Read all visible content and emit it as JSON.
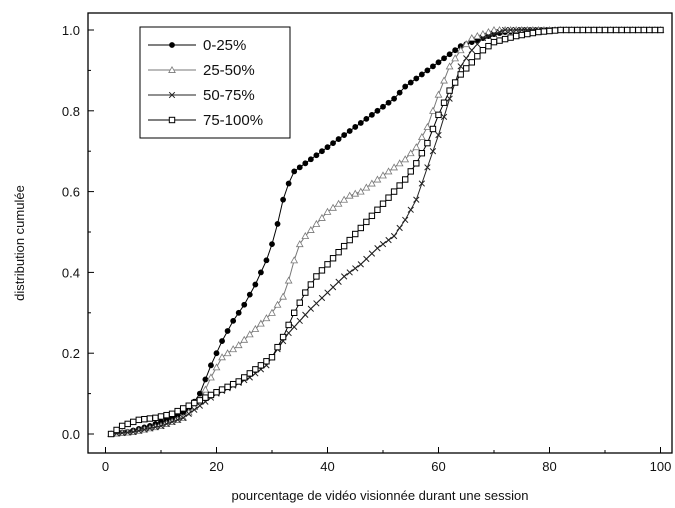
{
  "chart_data": {
    "type": "line",
    "xlabel": "pourcentage de vidéo visionnée durant une session",
    "ylabel": "distribution cumulée",
    "xlim": [
      0,
      100
    ],
    "ylim": [
      0.0,
      1.0
    ],
    "x_ticks": [
      0,
      20,
      40,
      60,
      80,
      100
    ],
    "x_tick_labels": [
      "0",
      "20",
      "40",
      "60",
      "80",
      "100"
    ],
    "y_ticks": [
      0.0,
      0.2,
      0.4,
      0.6,
      0.8,
      1.0
    ],
    "y_tick_labels": [
      "0.0",
      "0.2",
      "0.4",
      "0.6",
      "0.8",
      "1.0"
    ],
    "grid": false,
    "legend_position": "top-left",
    "series": [
      {
        "name": "0-25%",
        "marker": "filled-circle",
        "color": "#000000",
        "points": [
          [
            1,
            0.0
          ],
          [
            4,
            0.005
          ],
          [
            8,
            0.02
          ],
          [
            12,
            0.04
          ],
          [
            15,
            0.06
          ],
          [
            17,
            0.1
          ],
          [
            19,
            0.17
          ],
          [
            21,
            0.23
          ],
          [
            23,
            0.28
          ],
          [
            25,
            0.32
          ],
          [
            27,
            0.37
          ],
          [
            29,
            0.43
          ],
          [
            30,
            0.47
          ],
          [
            31,
            0.52
          ],
          [
            32,
            0.58
          ],
          [
            33,
            0.62
          ],
          [
            34,
            0.65
          ],
          [
            36,
            0.67
          ],
          [
            38,
            0.69
          ],
          [
            40,
            0.71
          ],
          [
            42,
            0.73
          ],
          [
            44,
            0.75
          ],
          [
            46,
            0.77
          ],
          [
            48,
            0.79
          ],
          [
            50,
            0.81
          ],
          [
            52,
            0.83
          ],
          [
            54,
            0.86
          ],
          [
            56,
            0.88
          ],
          [
            58,
            0.9
          ],
          [
            60,
            0.92
          ],
          [
            62,
            0.94
          ],
          [
            64,
            0.96
          ],
          [
            66,
            0.97
          ],
          [
            68,
            0.98
          ],
          [
            70,
            0.99
          ],
          [
            72,
            0.995
          ],
          [
            75,
            1.0
          ],
          [
            100,
            1.0
          ]
        ]
      },
      {
        "name": "25-50%",
        "marker": "open-triangle",
        "color": "#777777",
        "points": [
          [
            1,
            0.0
          ],
          [
            5,
            0.005
          ],
          [
            10,
            0.02
          ],
          [
            14,
            0.04
          ],
          [
            17,
            0.08
          ],
          [
            19,
            0.14
          ],
          [
            21,
            0.19
          ],
          [
            24,
            0.22
          ],
          [
            27,
            0.26
          ],
          [
            30,
            0.3
          ],
          [
            32,
            0.34
          ],
          [
            33,
            0.38
          ],
          [
            34,
            0.43
          ],
          [
            35,
            0.47
          ],
          [
            36,
            0.49
          ],
          [
            38,
            0.52
          ],
          [
            40,
            0.55
          ],
          [
            42,
            0.57
          ],
          [
            44,
            0.59
          ],
          [
            46,
            0.6
          ],
          [
            48,
            0.62
          ],
          [
            50,
            0.64
          ],
          [
            52,
            0.66
          ],
          [
            54,
            0.68
          ],
          [
            56,
            0.71
          ],
          [
            58,
            0.76
          ],
          [
            60,
            0.84
          ],
          [
            62,
            0.91
          ],
          [
            64,
            0.95
          ],
          [
            66,
            0.98
          ],
          [
            68,
            0.99
          ],
          [
            70,
            1.0
          ],
          [
            100,
            1.0
          ]
        ]
      },
      {
        "name": "50-75%",
        "marker": "cross",
        "color": "#222222",
        "points": [
          [
            1,
            0.0
          ],
          [
            5,
            0.005
          ],
          [
            10,
            0.02
          ],
          [
            14,
            0.04
          ],
          [
            17,
            0.07
          ],
          [
            20,
            0.1
          ],
          [
            23,
            0.12
          ],
          [
            26,
            0.14
          ],
          [
            29,
            0.17
          ],
          [
            31,
            0.21
          ],
          [
            33,
            0.25
          ],
          [
            35,
            0.28
          ],
          [
            37,
            0.31
          ],
          [
            40,
            0.35
          ],
          [
            43,
            0.39
          ],
          [
            46,
            0.42
          ],
          [
            49,
            0.46
          ],
          [
            52,
            0.49
          ],
          [
            54,
            0.53
          ],
          [
            56,
            0.58
          ],
          [
            58,
            0.66
          ],
          [
            60,
            0.74
          ],
          [
            62,
            0.83
          ],
          [
            64,
            0.91
          ],
          [
            66,
            0.95
          ],
          [
            68,
            0.98
          ],
          [
            70,
            0.99
          ],
          [
            72,
            1.0
          ],
          [
            100,
            1.0
          ]
        ]
      },
      {
        "name": "75-100%",
        "marker": "open-square",
        "color": "#000000",
        "points": [
          [
            1,
            0.0
          ],
          [
            3,
            0.02
          ],
          [
            6,
            0.035
          ],
          [
            9,
            0.04
          ],
          [
            12,
            0.05
          ],
          [
            15,
            0.07
          ],
          [
            18,
            0.09
          ],
          [
            21,
            0.11
          ],
          [
            24,
            0.13
          ],
          [
            27,
            0.16
          ],
          [
            30,
            0.19
          ],
          [
            32,
            0.24
          ],
          [
            34,
            0.3
          ],
          [
            36,
            0.35
          ],
          [
            38,
            0.39
          ],
          [
            40,
            0.42
          ],
          [
            42,
            0.45
          ],
          [
            44,
            0.48
          ],
          [
            46,
            0.51
          ],
          [
            48,
            0.54
          ],
          [
            50,
            0.57
          ],
          [
            52,
            0.6
          ],
          [
            54,
            0.63
          ],
          [
            56,
            0.67
          ],
          [
            58,
            0.72
          ],
          [
            60,
            0.79
          ],
          [
            62,
            0.85
          ],
          [
            64,
            0.89
          ],
          [
            66,
            0.92
          ],
          [
            68,
            0.95
          ],
          [
            70,
            0.97
          ],
          [
            74,
            0.985
          ],
          [
            78,
            0.995
          ],
          [
            82,
            1.0
          ],
          [
            100,
            1.0
          ]
        ]
      }
    ]
  }
}
